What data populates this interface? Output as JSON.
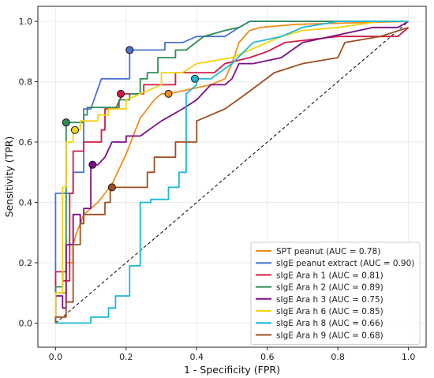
{
  "chart_data": {
    "type": "line",
    "title": "",
    "xlabel": "1 - Specificity (FPR)",
    "ylabel": "Sensitivity (TPR)",
    "xlim": [
      -0.05,
      1.05
    ],
    "ylim": [
      -0.08,
      1.05
    ],
    "xticks": [
      "0.0",
      "0.2",
      "0.4",
      "0.6",
      "0.8",
      "1.0"
    ],
    "yticks": [
      "0.0",
      "0.2",
      "0.4",
      "0.6",
      "0.8",
      "1.0"
    ],
    "grid": true,
    "legend_position": "bottom-right",
    "diagonal_reference": {
      "style": "dashed",
      "color": "#000000",
      "points": [
        [
          0,
          0
        ],
        [
          1,
          1
        ]
      ]
    },
    "series": [
      {
        "name": "SPT peanut (AUC = 0.78)",
        "color": "#F08C1C",
        "points": [
          [
            0,
            0
          ],
          [
            0,
            0.1
          ],
          [
            0.03,
            0.1
          ],
          [
            0.03,
            0.2
          ],
          [
            0.05,
            0.2
          ],
          [
            0.05,
            0.26
          ],
          [
            0.06,
            0.3
          ],
          [
            0.07,
            0.33
          ],
          [
            0.08,
            0.36
          ],
          [
            0.1,
            0.38
          ],
          [
            0.12,
            0.4
          ],
          [
            0.14,
            0.43
          ],
          [
            0.16,
            0.46
          ],
          [
            0.18,
            0.51
          ],
          [
            0.2,
            0.56
          ],
          [
            0.22,
            0.62
          ],
          [
            0.24,
            0.68
          ],
          [
            0.26,
            0.71
          ],
          [
            0.28,
            0.74
          ],
          [
            0.3,
            0.76
          ],
          [
            0.32,
            0.76
          ],
          [
            0.36,
            0.77
          ],
          [
            0.4,
            0.78
          ],
          [
            0.44,
            0.79
          ],
          [
            0.48,
            0.81
          ],
          [
            0.5,
            0.86
          ],
          [
            0.52,
            0.93
          ],
          [
            0.55,
            0.97
          ],
          [
            0.58,
            0.98
          ],
          [
            0.68,
            0.99
          ],
          [
            1.0,
            1.0
          ]
        ],
        "marker": [
          0.32,
          0.76
        ]
      },
      {
        "name": "sIgE peanut extract (AUC = 0.90)",
        "color": "#4A72D4",
        "points": [
          [
            0,
            0
          ],
          [
            0,
            0.43
          ],
          [
            0.05,
            0.43
          ],
          [
            0.05,
            0.5
          ],
          [
            0.08,
            0.5
          ],
          [
            0.08,
            0.71
          ],
          [
            0.1,
            0.71
          ],
          [
            0.13,
            0.81
          ],
          [
            0.17,
            0.81
          ],
          [
            0.21,
            0.81
          ],
          [
            0.21,
            0.905
          ],
          [
            0.28,
            0.905
          ],
          [
            0.31,
            0.905
          ],
          [
            0.31,
            0.93
          ],
          [
            0.36,
            0.93
          ],
          [
            0.4,
            0.95
          ],
          [
            0.48,
            0.95
          ],
          [
            0.52,
            0.98
          ],
          [
            0.55,
            1.0
          ],
          [
            1.0,
            1.0
          ]
        ],
        "marker": [
          0.21,
          0.905
        ]
      },
      {
        "name": "sIgE Ara h 1 (AUC = 0.81)",
        "color": "#D01C44",
        "points": [
          [
            0,
            0
          ],
          [
            0,
            0.17
          ],
          [
            0.02,
            0.17
          ],
          [
            0.02,
            0.14
          ],
          [
            0.04,
            0.14
          ],
          [
            0.04,
            0.43
          ],
          [
            0.05,
            0.43
          ],
          [
            0.05,
            0.57
          ],
          [
            0.08,
            0.57
          ],
          [
            0.08,
            0.6
          ],
          [
            0.13,
            0.6
          ],
          [
            0.13,
            0.64
          ],
          [
            0.14,
            0.64
          ],
          [
            0.14,
            0.71
          ],
          [
            0.17,
            0.71
          ],
          [
            0.19,
            0.76
          ],
          [
            0.25,
            0.76
          ],
          [
            0.25,
            0.79
          ],
          [
            0.3,
            0.79
          ],
          [
            0.34,
            0.79
          ],
          [
            0.34,
            0.83
          ],
          [
            0.4,
            0.83
          ],
          [
            0.45,
            0.83
          ],
          [
            0.48,
            0.86
          ],
          [
            0.55,
            0.88
          ],
          [
            0.6,
            0.9
          ],
          [
            0.65,
            0.93
          ],
          [
            0.8,
            0.95
          ],
          [
            0.9,
            0.95
          ],
          [
            0.97,
            0.95
          ],
          [
            1.0,
            0.98
          ]
        ],
        "marker": [
          0.185,
          0.76
        ]
      },
      {
        "name": "sIgE Ara h 2 (AUC = 0.89)",
        "color": "#2E8B57",
        "points": [
          [
            0,
            0
          ],
          [
            0,
            0.12
          ],
          [
            0.02,
            0.12
          ],
          [
            0.02,
            0.17
          ],
          [
            0.03,
            0.17
          ],
          [
            0.03,
            0.55
          ],
          [
            0.03,
            0.665
          ],
          [
            0.08,
            0.665
          ],
          [
            0.08,
            0.69
          ],
          [
            0.09,
            0.69
          ],
          [
            0.09,
            0.715
          ],
          [
            0.18,
            0.715
          ],
          [
            0.18,
            0.74
          ],
          [
            0.21,
            0.74
          ],
          [
            0.21,
            0.76
          ],
          [
            0.24,
            0.76
          ],
          [
            0.24,
            0.81
          ],
          [
            0.26,
            0.81
          ],
          [
            0.26,
            0.83
          ],
          [
            0.29,
            0.83
          ],
          [
            0.29,
            0.88
          ],
          [
            0.34,
            0.88
          ],
          [
            0.34,
            0.905
          ],
          [
            0.37,
            0.905
          ],
          [
            0.42,
            0.95
          ],
          [
            0.48,
            0.97
          ],
          [
            0.52,
            0.98
          ],
          [
            0.55,
            1.0
          ],
          [
            1.0,
            1.0
          ]
        ],
        "marker": [
          0.03,
          0.665
        ]
      },
      {
        "name": "sIgE Ara h 3 (AUC = 0.75)",
        "color": "#7D0F86",
        "points": [
          [
            0,
            0
          ],
          [
            0,
            0.09
          ],
          [
            0.02,
            0.09
          ],
          [
            0.02,
            0.05
          ],
          [
            0.03,
            0.05
          ],
          [
            0.03,
            0.26
          ],
          [
            0.05,
            0.26
          ],
          [
            0.05,
            0.36
          ],
          [
            0.07,
            0.36
          ],
          [
            0.07,
            0.33
          ],
          [
            0.08,
            0.33
          ],
          [
            0.08,
            0.38
          ],
          [
            0.1,
            0.38
          ],
          [
            0.1,
            0.525
          ],
          [
            0.12,
            0.525
          ],
          [
            0.14,
            0.55
          ],
          [
            0.16,
            0.6
          ],
          [
            0.2,
            0.6
          ],
          [
            0.2,
            0.62
          ],
          [
            0.24,
            0.62
          ],
          [
            0.3,
            0.67
          ],
          [
            0.36,
            0.71
          ],
          [
            0.4,
            0.74
          ],
          [
            0.44,
            0.79
          ],
          [
            0.48,
            0.79
          ],
          [
            0.5,
            0.81
          ],
          [
            0.52,
            0.86
          ],
          [
            0.56,
            0.86
          ],
          [
            0.64,
            0.88
          ],
          [
            0.7,
            0.93
          ],
          [
            0.78,
            0.95
          ],
          [
            0.9,
            0.98
          ],
          [
            0.97,
            0.98
          ],
          [
            1.0,
            1.0
          ]
        ],
        "marker": [
          0.105,
          0.525
        ]
      },
      {
        "name": "sIgE Ara h 6 (AUC = 0.85)",
        "color": "#F2D40F",
        "points": [
          [
            0,
            0
          ],
          [
            0,
            0.1
          ],
          [
            0.02,
            0.1
          ],
          [
            0.02,
            0.45
          ],
          [
            0.03,
            0.45
          ],
          [
            0.03,
            0.6
          ],
          [
            0.05,
            0.6
          ],
          [
            0.05,
            0.64
          ],
          [
            0.07,
            0.64
          ],
          [
            0.07,
            0.67
          ],
          [
            0.12,
            0.67
          ],
          [
            0.12,
            0.69
          ],
          [
            0.15,
            0.69
          ],
          [
            0.15,
            0.71
          ],
          [
            0.2,
            0.71
          ],
          [
            0.2,
            0.74
          ],
          [
            0.24,
            0.76
          ],
          [
            0.3,
            0.79
          ],
          [
            0.3,
            0.83
          ],
          [
            0.36,
            0.83
          ],
          [
            0.4,
            0.86
          ],
          [
            0.5,
            0.88
          ],
          [
            0.56,
            0.91
          ],
          [
            0.64,
            0.95
          ],
          [
            0.7,
            0.97
          ],
          [
            0.8,
            0.98
          ],
          [
            0.92,
            1.0
          ],
          [
            1.0,
            1.0
          ]
        ],
        "marker": [
          0.055,
          0.64
        ]
      },
      {
        "name": "sIgE Ara h 8 (AUC = 0.66)",
        "color": "#1DB8D8",
        "points": [
          [
            0,
            0
          ],
          [
            0.1,
            0
          ],
          [
            0.1,
            0.02
          ],
          [
            0.15,
            0.02
          ],
          [
            0.15,
            0.05
          ],
          [
            0.17,
            0.05
          ],
          [
            0.17,
            0.09
          ],
          [
            0.21,
            0.09
          ],
          [
            0.21,
            0.19
          ],
          [
            0.24,
            0.19
          ],
          [
            0.24,
            0.4
          ],
          [
            0.27,
            0.4
          ],
          [
            0.27,
            0.41
          ],
          [
            0.32,
            0.41
          ],
          [
            0.32,
            0.45
          ],
          [
            0.35,
            0.45
          ],
          [
            0.35,
            0.5
          ],
          [
            0.37,
            0.5
          ],
          [
            0.37,
            0.76
          ],
          [
            0.4,
            0.79
          ],
          [
            0.4,
            0.81
          ],
          [
            0.44,
            0.81
          ],
          [
            0.5,
            0.86
          ],
          [
            0.56,
            0.93
          ],
          [
            0.64,
            0.95
          ],
          [
            0.7,
            0.98
          ],
          [
            0.8,
            1.0
          ],
          [
            1.0,
            1.0
          ]
        ],
        "marker": [
          0.395,
          0.81
        ]
      },
      {
        "name": "sIgE Ara h 9 (AUC = 0.68)",
        "color": "#9E4F22",
        "points": [
          [
            0,
            0
          ],
          [
            0,
            0.02
          ],
          [
            0.03,
            0.02
          ],
          [
            0.03,
            0.07
          ],
          [
            0.05,
            0.07
          ],
          [
            0.05,
            0.26
          ],
          [
            0.07,
            0.26
          ],
          [
            0.07,
            0.33
          ],
          [
            0.08,
            0.33
          ],
          [
            0.08,
            0.36
          ],
          [
            0.14,
            0.36
          ],
          [
            0.14,
            0.4
          ],
          [
            0.155,
            0.4
          ],
          [
            0.155,
            0.45
          ],
          [
            0.26,
            0.45
          ],
          [
            0.26,
            0.5
          ],
          [
            0.28,
            0.5
          ],
          [
            0.28,
            0.55
          ],
          [
            0.34,
            0.55
          ],
          [
            0.34,
            0.6
          ],
          [
            0.36,
            0.6
          ],
          [
            0.4,
            0.6
          ],
          [
            0.4,
            0.67
          ],
          [
            0.48,
            0.71
          ],
          [
            0.54,
            0.76
          ],
          [
            0.62,
            0.83
          ],
          [
            0.7,
            0.86
          ],
          [
            0.8,
            0.88
          ],
          [
            0.82,
            0.93
          ],
          [
            0.92,
            0.95
          ],
          [
            1.0,
            0.98
          ]
        ],
        "marker": [
          0.16,
          0.45
        ]
      }
    ]
  }
}
